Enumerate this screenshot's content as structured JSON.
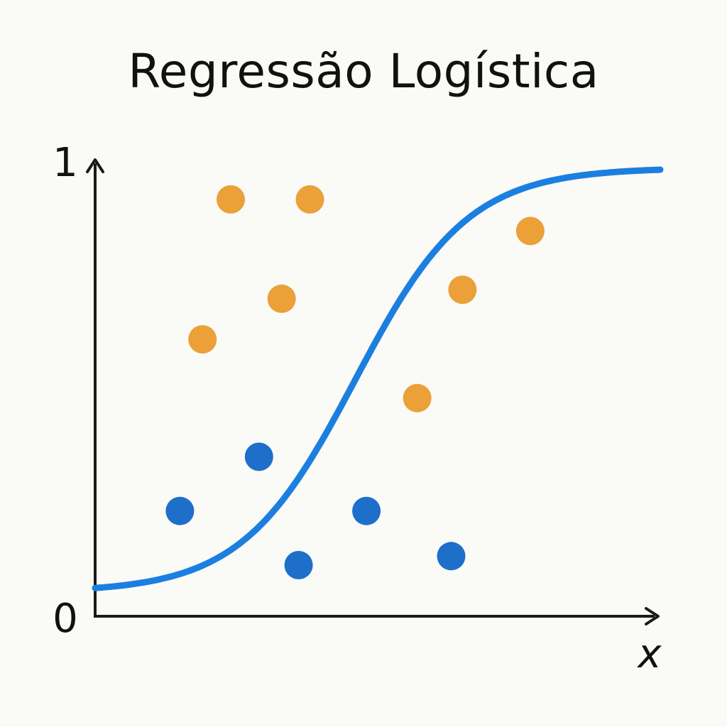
{
  "chart_data": {
    "type": "scatter",
    "title": "Regressão Logística",
    "xlabel": "x",
    "ylabel": "",
    "ylim": [
      0,
      1
    ],
    "ytick_labels": [
      "0",
      "1"
    ],
    "grid": false,
    "colors": {
      "curve": "#1b7fe0",
      "class_orange": "#eba038",
      "class_blue": "#1d6fc9",
      "axis": "#1a1a1a"
    },
    "curve": {
      "kind": "sigmoid",
      "lower": 0.05,
      "upper": 0.99,
      "midpoint": 0.46,
      "steepness": 10
    },
    "series": [
      {
        "points": [
          {
            "x": 0.24,
            "y": 0.92
          },
          {
            "x": 0.38,
            "y": 0.92
          },
          {
            "x": 0.33,
            "y": 0.7
          },
          {
            "x": 0.19,
            "y": 0.61
          },
          {
            "x": 0.77,
            "y": 0.85
          },
          {
            "x": 0.65,
            "y": 0.72
          },
          {
            "x": 0.57,
            "y": 0.48
          }
        ]
      },
      {
        "points": [
          {
            "x": 0.29,
            "y": 0.35
          },
          {
            "x": 0.15,
            "y": 0.23
          },
          {
            "x": 0.36,
            "y": 0.11
          },
          {
            "x": 0.48,
            "y": 0.23
          },
          {
            "x": 0.63,
            "y": 0.13
          }
        ]
      }
    ]
  }
}
